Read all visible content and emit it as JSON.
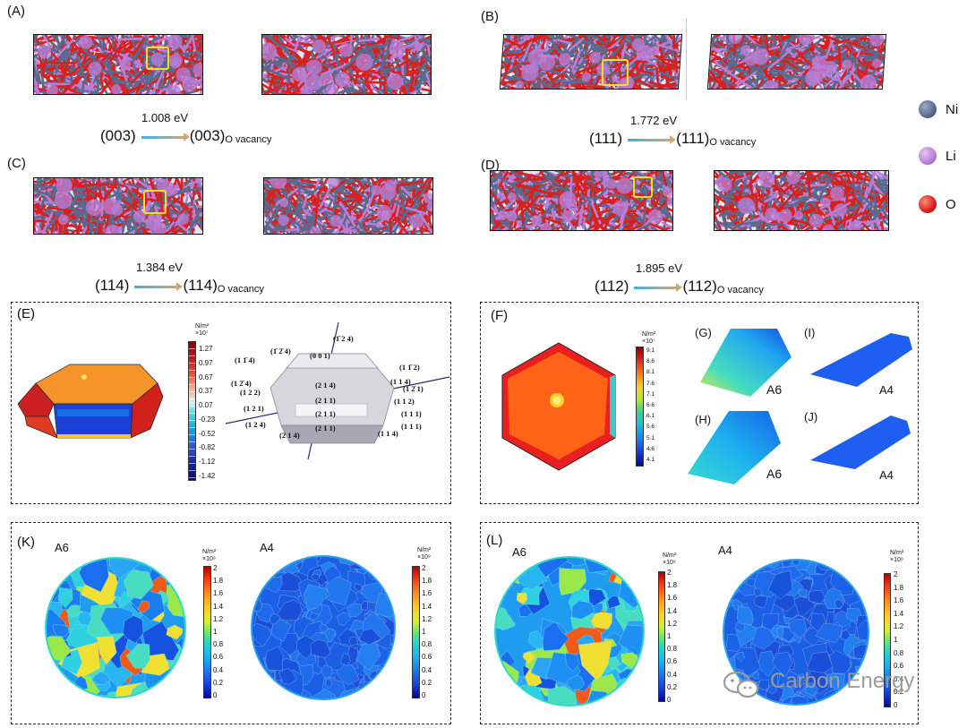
{
  "panels": {
    "A": {
      "label": "(A)",
      "from": "(003)",
      "to": "(003)",
      "sub": "O vacancy",
      "energy": "1.008 eV"
    },
    "B": {
      "label": "(B)",
      "from": "(111)",
      "to": "(111)",
      "sub": "O vacancy",
      "energy": "1.772 eV"
    },
    "C": {
      "label": "(C)",
      "from": "(114)",
      "to": "(114)",
      "sub": "O vacancy",
      "energy": "1.384 eV"
    },
    "D": {
      "label": "(D)",
      "from": "(112)",
      "to": "(112)",
      "sub": "O vacancy",
      "energy": "1.895 eV"
    },
    "E": {
      "label": "(E)"
    },
    "F": {
      "label": "(F)"
    },
    "G": {
      "label": "(G)",
      "sample": "A6"
    },
    "H": {
      "label": "(H)",
      "sample": "A6"
    },
    "I": {
      "label": "(I)",
      "sample": "A4"
    },
    "J": {
      "label": "(J)",
      "sample": "A4"
    },
    "K": {
      "label": "(K)",
      "left": "A6",
      "right": "A4"
    },
    "L": {
      "label": "(L)",
      "left": "A6",
      "right": "A4"
    }
  },
  "legend": [
    {
      "symbol": "Ni",
      "color": "#5a6a8e"
    },
    {
      "symbol": "Li",
      "color": "#b97fd8"
    },
    {
      "symbol": "O",
      "color": "#d9201c"
    }
  ],
  "colorbar_E": {
    "unit": "N/m²",
    "scale": "×10⁷",
    "ticks": [
      "1.27",
      "0.97",
      "0.67",
      "0.37",
      "0.07",
      "-0.23",
      "-0.52",
      "-0.82",
      "-1.12",
      "-1.42"
    ]
  },
  "colorbar_F": {
    "unit": "N/m²",
    "scale": "×10⁷",
    "ticks": [
      "9.1",
      "8.6",
      "8.1",
      "7.6",
      "7.1",
      "6.6",
      "6.1",
      "5.6",
      "5.1",
      "4.6",
      "4.1"
    ]
  },
  "colorbar_K": {
    "unit": "N/m²",
    "scale": "×10⁹",
    "ticks": [
      "2",
      "1.8",
      "1.6",
      "1.4",
      "1.2",
      "1",
      "0.8",
      "0.6",
      "0.4",
      "0.2",
      "0"
    ]
  },
  "miller": [
    {
      "t": "(1̄ 2̄ 4)"
    },
    {
      "t": "(1 1̄ 4)"
    },
    {
      "t": "(0 0 1)"
    },
    {
      "t": "(1̄ 2 4)"
    },
    {
      "t": "(1 1̄ 2)"
    },
    {
      "t": "(1 2̄ 1)"
    },
    {
      "t": "(1 2̄ 4)"
    },
    {
      "t": "(2 1 4)"
    },
    {
      "t": "(1 1 4)"
    },
    {
      "t": "(1 2 2)"
    },
    {
      "t": "(2 1 1)"
    },
    {
      "t": "(1 1 2)"
    },
    {
      "t": "(1 2 1)"
    },
    {
      "t": "(2 1 1)"
    },
    {
      "t": "(1 1 1)"
    },
    {
      "t": "(1 1 1)"
    },
    {
      "t": "(1 2 4)"
    },
    {
      "t": "(2 1 1)"
    },
    {
      "t": "(1 1 4)"
    },
    {
      "t": "(2 1 4)"
    }
  ],
  "watermark": "Carbon Energy",
  "colors": {
    "ni": "#5a6a8e",
    "li": "#b97fd8",
    "o": "#d9201c",
    "highlight": "#f4e11b"
  }
}
